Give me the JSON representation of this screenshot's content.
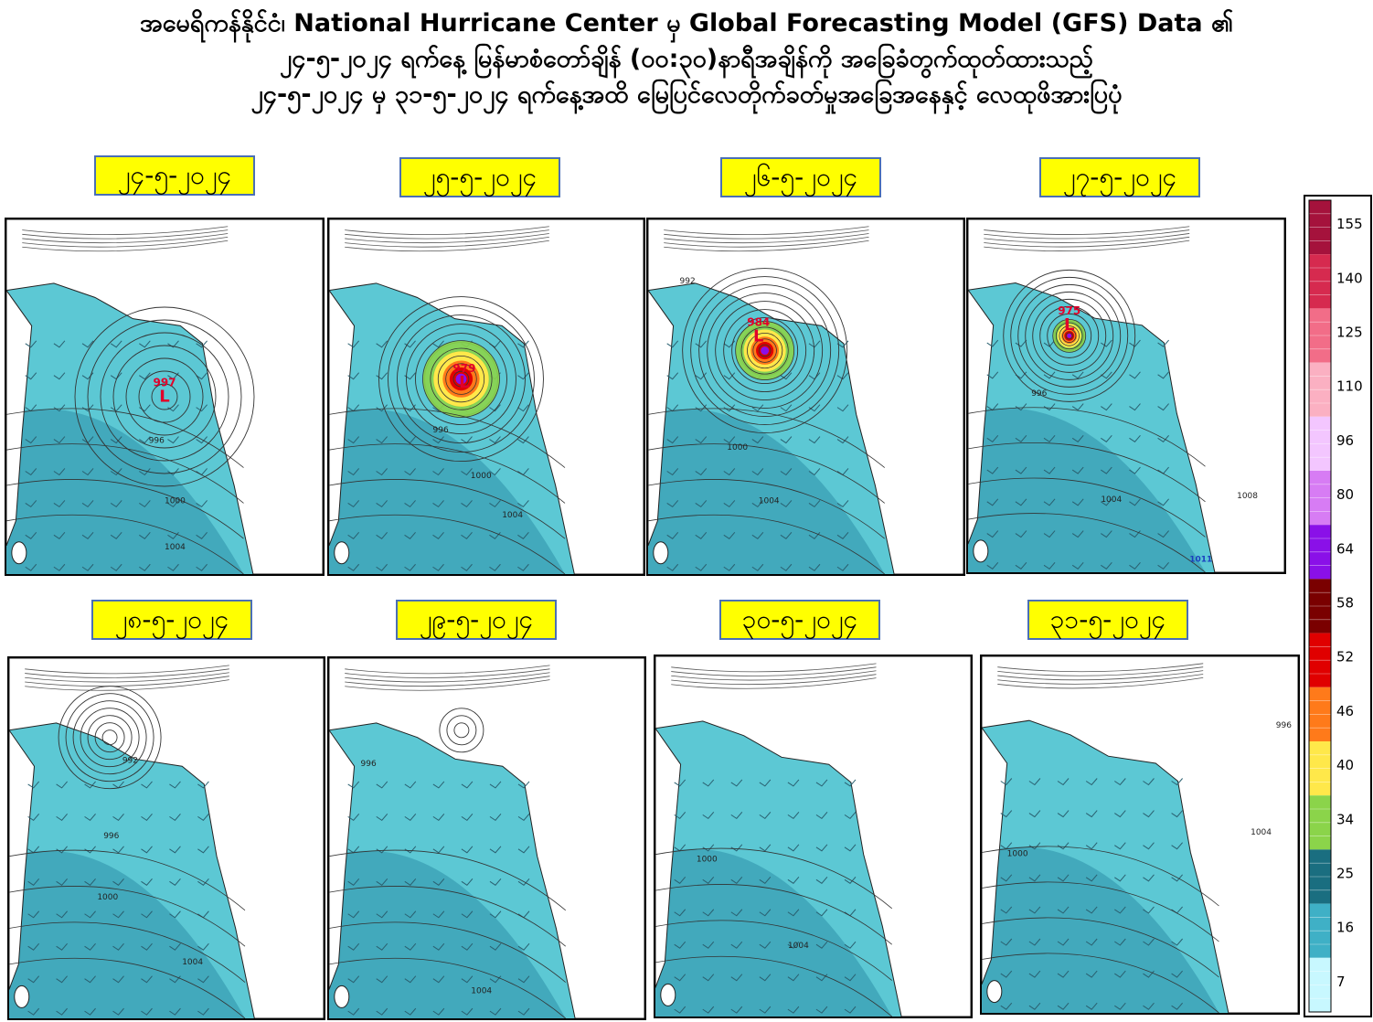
{
  "title": {
    "line1": "အမေရိကန်နိုင်ငံ၊ National Hurricane Center မှ Global Forecasting Model (GFS) Data ၏",
    "line2": "၂၄-၅-၂၀၂၄ ရက်နေ့ မြန်မာစံတော်ချိန် (၀၀:၃၀)နာရီအချိန်ကို အခြေခံတွက်ထုတ်ထားသည့်",
    "line3": "၂၄-၅-၂၀၂၄ မှ ၃၁-၅-၂၀၂၄ ရက်နေ့အထိ မြေပြင်လေတိုက်ခတ်မှုအခြေအနေနှင့် လေထုဖိအားပြပုံ"
  },
  "panels": [
    {
      "date": "၂၄-၅-၂၀၂၄",
      "low_pressure": "997",
      "isobars": [
        "996",
        "1000",
        "1004"
      ]
    },
    {
      "date": "၂၅-၅-၂၀၂၄",
      "low_pressure": "979",
      "isobars": [
        "996",
        "1000",
        "1004"
      ]
    },
    {
      "date": "၂၆-၅-၂၀၂၄",
      "low_pressure": "984",
      "isobars": [
        "992",
        "1000",
        "1004"
      ]
    },
    {
      "date": "၂၇-၅-၂၀၂၄",
      "low_pressure": "975",
      "isobars": [
        "996",
        "1004",
        "1008",
        "1011"
      ]
    },
    {
      "date": "၂၈-၅-၂၀၂၄",
      "low_pressure": "",
      "isobars": [
        "992",
        "996",
        "1000",
        "1004"
      ]
    },
    {
      "date": "၂၉-၅-၂၀၂၄",
      "low_pressure": "",
      "isobars": [
        "996",
        "1004"
      ]
    },
    {
      "date": "၃၀-၅-၂၀၂၄",
      "low_pressure": "",
      "isobars": [
        "1000",
        "1004"
      ]
    },
    {
      "date": "၃၁-၅-၂၀၂၄",
      "low_pressure": "",
      "isobars": [
        "1000",
        "996",
        "1004"
      ]
    }
  ],
  "low_marker": "L",
  "colorbar": {
    "ticks": [
      "155",
      "140",
      "125",
      "110",
      "96",
      "80",
      "64",
      "58",
      "52",
      "46",
      "40",
      "34",
      "25",
      "16",
      "7"
    ],
    "colors": {
      "c155": "#a5123c",
      "c140": "#d62a4f",
      "c125": "#f26d88",
      "c110": "#fbb0c2",
      "c96": "#f3c6ff",
      "c80": "#d77cf4",
      "c64": "#8a10e8",
      "c58": "#7a0000",
      "c52": "#e00000",
      "c46": "#ff7a1a",
      "c40": "#ffe84a",
      "c34": "#8bd44a",
      "c25": "#1a6e80",
      "c16": "#3fb0c6",
      "c7": "#c8f8ff"
    },
    "sea_color": "#5cc8d4",
    "sea_dark": "#2e8fa7"
  }
}
